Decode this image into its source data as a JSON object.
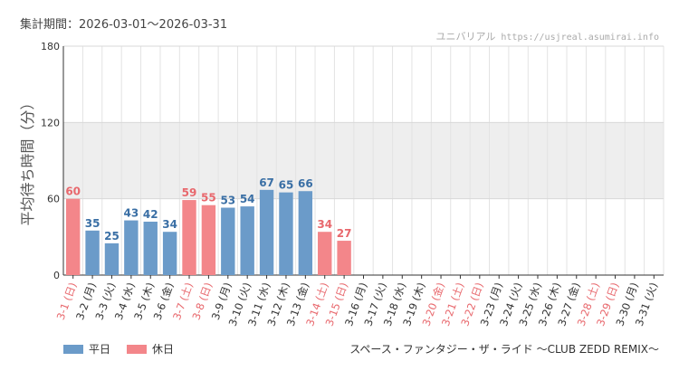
{
  "header": {
    "period_label": "集計期間：2026-03-01～2026-03-31",
    "watermark_name": "ユニバリアル",
    "watermark_url": "https://usjreal.asumirai.info"
  },
  "colors": {
    "weekday": "#6b9bc9",
    "holiday": "#f3868a",
    "weekday_text": "#3a6fa5",
    "holiday_text": "#e8686d",
    "band": "#eeeeee",
    "grid": "#e3e3e3",
    "axis": "#333333"
  },
  "legend": {
    "weekday": "平日",
    "holiday": "休日"
  },
  "footer": {
    "attraction_name": "スペース・ファンタジー・ザ・ライド ～CLUB ZEDD REMIX～"
  },
  "chart_data": {
    "type": "bar",
    "title": "",
    "xlabel": "",
    "ylabel": "平均待ち時間（分）",
    "ylim": [
      0,
      180
    ],
    "yticks": [
      0,
      60,
      120,
      180
    ],
    "grid": true,
    "legend_position": "bottom-left",
    "categories": [
      "3-1 (日)",
      "3-2 (月)",
      "3-3 (火)",
      "3-4 (水)",
      "3-5 (木)",
      "3-6 (金)",
      "3-7 (土)",
      "3-8 (日)",
      "3-9 (月)",
      "3-10 (火)",
      "3-11 (水)",
      "3-12 (木)",
      "3-13 (金)",
      "3-14 (土)",
      "3-15 (日)",
      "3-16 (月)",
      "3-17 (火)",
      "3-18 (水)",
      "3-19 (木)",
      "3-20 (金)",
      "3-21 (土)",
      "3-22 (日)",
      "3-23 (月)",
      "3-24 (火)",
      "3-25 (水)",
      "3-26 (木)",
      "3-27 (金)",
      "3-28 (土)",
      "3-29 (日)",
      "3-30 (月)",
      "3-31 (火)"
    ],
    "holiday": [
      true,
      false,
      false,
      false,
      false,
      false,
      true,
      true,
      false,
      false,
      false,
      false,
      false,
      true,
      true,
      false,
      false,
      false,
      false,
      true,
      true,
      true,
      false,
      false,
      false,
      false,
      false,
      true,
      true,
      false,
      false
    ],
    "values": [
      60,
      35,
      25,
      43,
      42,
      34,
      59,
      55,
      53,
      54,
      67,
      65,
      66,
      34,
      27,
      null,
      null,
      null,
      null,
      null,
      null,
      null,
      null,
      null,
      null,
      null,
      null,
      null,
      null,
      null,
      null
    ]
  }
}
